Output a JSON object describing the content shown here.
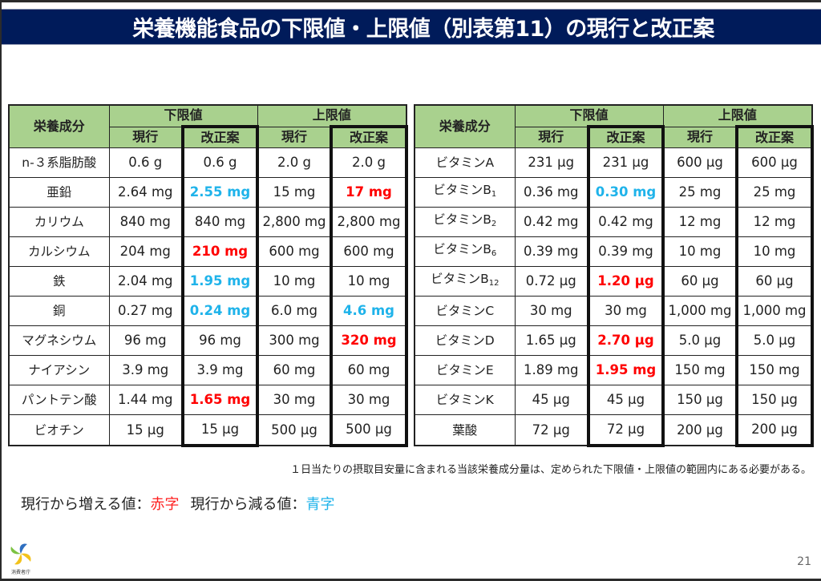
{
  "title": "栄養機能食品の下限値・上限値（別表第11）の現行と改正案",
  "table_headers": {
    "nutrient": "栄養成分",
    "lower": "下限値",
    "upper": "上限値",
    "current": "現行",
    "proposed": "改正案"
  },
  "left_table": [
    {
      "name": "n-３系脂肪酸",
      "sub": "",
      "lower_current": "0.6 g",
      "lower_proposed": "0.6 g",
      "lower_change": "",
      "upper_current": "2.0 g",
      "upper_proposed": "2.0 g",
      "upper_change": ""
    },
    {
      "name": "亜鉛",
      "sub": "",
      "lower_current": "2.64 mg",
      "lower_proposed": "2.55 mg",
      "lower_change": "decrease",
      "upper_current": "15 mg",
      "upper_proposed": "17 mg",
      "upper_change": "increase"
    },
    {
      "name": "カリウム",
      "sub": "",
      "lower_current": "840 mg",
      "lower_proposed": "840 mg",
      "lower_change": "",
      "upper_current": "2,800 mg",
      "upper_proposed": "2,800 mg",
      "upper_change": ""
    },
    {
      "name": "カルシウム",
      "sub": "",
      "lower_current": "204 mg",
      "lower_proposed": "210 mg",
      "lower_change": "increase",
      "upper_current": "600 mg",
      "upper_proposed": "600 mg",
      "upper_change": ""
    },
    {
      "name": "鉄",
      "sub": "",
      "lower_current": "2.04 mg",
      "lower_proposed": "1.95 mg",
      "lower_change": "decrease",
      "upper_current": "10 mg",
      "upper_proposed": "10 mg",
      "upper_change": ""
    },
    {
      "name": "銅",
      "sub": "",
      "lower_current": "0.27 mg",
      "lower_proposed": "0.24 mg",
      "lower_change": "decrease",
      "upper_current": "6.0 mg",
      "upper_proposed": "4.6 mg",
      "upper_change": "decrease"
    },
    {
      "name": "マグネシウム",
      "sub": "",
      "lower_current": "96 mg",
      "lower_proposed": "96 mg",
      "lower_change": "",
      "upper_current": "300 mg",
      "upper_proposed": "320 mg",
      "upper_change": "increase"
    },
    {
      "name": "ナイアシン",
      "sub": "",
      "lower_current": "3.9 mg",
      "lower_proposed": "3.9 mg",
      "lower_change": "",
      "upper_current": "60 mg",
      "upper_proposed": "60 mg",
      "upper_change": ""
    },
    {
      "name": "パントテン酸",
      "sub": "",
      "lower_current": "1.44 mg",
      "lower_proposed": "1.65 mg",
      "lower_change": "increase",
      "upper_current": "30 mg",
      "upper_proposed": "30 mg",
      "upper_change": ""
    },
    {
      "name": "ビオチン",
      "sub": "",
      "lower_current": "15 μg",
      "lower_proposed": "15 μg",
      "lower_change": "",
      "upper_current": "500 μg",
      "upper_proposed": "500 μg",
      "upper_change": ""
    }
  ],
  "right_table": [
    {
      "name": "ビタミンA",
      "sub": "",
      "lower_current": "231 μg",
      "lower_proposed": "231 μg",
      "lower_change": "",
      "upper_current": "600 μg",
      "upper_proposed": "600 μg",
      "upper_change": ""
    },
    {
      "name": "ビタミンB",
      "sub": "1",
      "lower_current": "0.36 mg",
      "lower_proposed": "0.30 mg",
      "lower_change": "decrease",
      "upper_current": "25 mg",
      "upper_proposed": "25 mg",
      "upper_change": ""
    },
    {
      "name": "ビタミンB",
      "sub": "2",
      "lower_current": "0.42 mg",
      "lower_proposed": "0.42 mg",
      "lower_change": "",
      "upper_current": "12 mg",
      "upper_proposed": "12 mg",
      "upper_change": ""
    },
    {
      "name": "ビタミンB",
      "sub": "6",
      "lower_current": "0.39 mg",
      "lower_proposed": "0.39 mg",
      "lower_change": "",
      "upper_current": "10 mg",
      "upper_proposed": "10 mg",
      "upper_change": ""
    },
    {
      "name": "ビタミンB",
      "sub": "12",
      "lower_current": "0.72 μg",
      "lower_proposed": "1.20 μg",
      "lower_change": "increase",
      "upper_current": "60 μg",
      "upper_proposed": "60 μg",
      "upper_change": ""
    },
    {
      "name": "ビタミンC",
      "sub": "",
      "lower_current": "30 mg",
      "lower_proposed": "30 mg",
      "lower_change": "",
      "upper_current": "1,000 mg",
      "upper_proposed": "1,000 mg",
      "upper_change": ""
    },
    {
      "name": "ビタミンD",
      "sub": "",
      "lower_current": "1.65 μg",
      "lower_proposed": "2.70 μg",
      "lower_change": "increase",
      "upper_current": "5.0 μg",
      "upper_proposed": "5.0 μg",
      "upper_change": ""
    },
    {
      "name": "ビタミンE",
      "sub": "",
      "lower_current": "1.89 mg",
      "lower_proposed": "1.95 mg",
      "lower_change": "increase",
      "upper_current": "150 mg",
      "upper_proposed": "150 mg",
      "upper_change": ""
    },
    {
      "name": "ビタミンK",
      "sub": "",
      "lower_current": "45 μg",
      "lower_proposed": "45 μg",
      "lower_change": "",
      "upper_current": "150 μg",
      "upper_proposed": "150 μg",
      "upper_change": ""
    },
    {
      "name": "葉酸",
      "sub": "",
      "lower_current": "72 μg",
      "lower_proposed": "72 μg",
      "lower_change": "",
      "upper_current": "200 μg",
      "upper_proposed": "200 μg",
      "upper_change": ""
    }
  ],
  "footnote": "１日当たりの摂取目安量に含まれる当該栄養成分量は、定められた下限値・上限値の範囲内にある必要がある。",
  "legend": {
    "increase_label": "現行から増える値：",
    "increase_value": "赤字",
    "decrease_label": "現行から減る値：",
    "decrease_value": "青字"
  },
  "colors": {
    "title_bg": "#001b5a",
    "header_bg": "#a9d18e",
    "increase": "#ff0000",
    "decrease": "#1fb3ea"
  },
  "logo": {
    "text": "消費者庁",
    "icon": "caa-pinwheel-logo"
  },
  "page_number": "21"
}
